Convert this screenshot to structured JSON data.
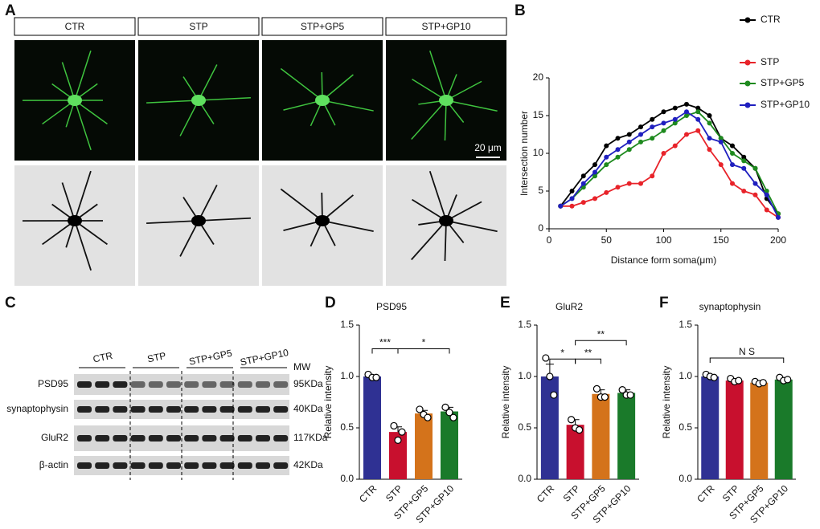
{
  "panels": {
    "letters": [
      "A",
      "B",
      "C",
      "D",
      "E",
      "F"
    ]
  },
  "images": {
    "labels": [
      "CTR",
      "STP",
      "STP+GP5",
      "STP+GP10"
    ],
    "scale_bar": "20 μm"
  },
  "blot": {
    "groups": [
      "CTR",
      "STP",
      "STP+GP5",
      "STP+GP10"
    ],
    "mw_header": "MW",
    "rows": [
      {
        "protein": "PSD95",
        "mw": "95KDa"
      },
      {
        "protein": "synaptophysin",
        "mw": "40KDa"
      },
      {
        "protein": "GluR2",
        "mw": "117KDa"
      },
      {
        "protein": "β-actin",
        "mw": "42KDa"
      }
    ]
  },
  "chart_data": [
    {
      "type": "line",
      "xlabel": "Distance form soma(μm)",
      "ylabel": "Intersection number",
      "x": [
        10,
        20,
        30,
        40,
        50,
        60,
        70,
        80,
        90,
        100,
        110,
        120,
        130,
        140,
        150,
        160,
        170,
        180,
        190,
        200
      ],
      "xlim": [
        0,
        200
      ],
      "xticks": [
        0,
        50,
        100,
        150,
        200
      ],
      "ylim": [
        0,
        20
      ],
      "yticks": [
        0,
        5,
        10,
        15,
        20
      ],
      "series": [
        {
          "name": "CTR",
          "color": "#000000",
          "values": [
            3,
            5,
            7,
            8.5,
            11,
            12,
            12.5,
            13.5,
            14.5,
            15.5,
            16,
            16.5,
            16,
            15,
            12,
            11,
            9.5,
            8,
            4,
            2
          ]
        },
        {
          "name": "STP",
          "color": "#e8232a",
          "values": [
            3,
            3,
            3.5,
            4,
            4.8,
            5.5,
            6,
            6,
            7,
            10,
            11,
            12.5,
            13,
            10.5,
            8.5,
            6,
            5,
            4.5,
            2.5,
            1.5
          ]
        },
        {
          "name": "STP+GP5",
          "color": "#1e8a1e",
          "values": [
            3,
            4,
            5.5,
            7,
            8.5,
            9.5,
            10.5,
            11.5,
            12,
            13,
            14,
            15,
            15.5,
            14,
            12,
            10,
            9,
            8,
            5,
            2
          ]
        },
        {
          "name": "STP+GP10",
          "color": "#1f1fbf",
          "values": [
            3,
            4,
            6,
            7.5,
            9.5,
            10.5,
            11.5,
            12.5,
            13.5,
            14,
            14.5,
            15.5,
            14.5,
            12,
            11.5,
            8.5,
            8,
            6,
            4.5,
            1.5
          ]
        }
      ]
    },
    {
      "type": "bar",
      "title": "PSD95",
      "ylabel": "Relative intensity",
      "categories": [
        "CTR",
        "STP",
        "STP+GP5",
        "STP+GP10"
      ],
      "colors": [
        "#2f3193",
        "#c8102e",
        "#d4731b",
        "#1a7a2a"
      ],
      "values": [
        1.0,
        0.46,
        0.64,
        0.66
      ],
      "errors": [
        0.01,
        0.05,
        0.03,
        0.04
      ],
      "points": [
        [
          1.02,
          0.99,
          0.99
        ],
        [
          0.52,
          0.38,
          0.46
        ],
        [
          0.68,
          0.63,
          0.6
        ],
        [
          0.7,
          0.65,
          0.6
        ]
      ],
      "ylim": [
        0,
        1.5
      ],
      "yticks": [
        {
          "value": 0,
          "label": "0.0"
        },
        0.5,
        {
          "value": 1,
          "label": "1.0"
        },
        1.5
      ],
      "annotations": [
        {
          "label": "***",
          "from": "CTR",
          "to": "STP"
        },
        {
          "label": "*",
          "from": "STP",
          "to": "STP+GP10"
        }
      ]
    },
    {
      "type": "bar",
      "title": "GluR2",
      "ylabel": "Relative intensity",
      "categories": [
        "CTR",
        "STP",
        "STP+GP5",
        "STP+GP10"
      ],
      "colors": [
        "#2f3193",
        "#c8102e",
        "#d4731b",
        "#1a7a2a"
      ],
      "values": [
        1.0,
        0.53,
        0.83,
        0.84
      ],
      "errors": [
        0.12,
        0.05,
        0.04,
        0.03
      ],
      "points": [
        [
          1.18,
          1.0,
          0.82
        ],
        [
          0.58,
          0.5,
          0.48
        ],
        [
          0.88,
          0.8,
          0.8
        ],
        [
          0.87,
          0.82,
          0.82
        ]
      ],
      "ylim": [
        0,
        1.5
      ],
      "yticks": [
        {
          "value": 0,
          "label": "0.0"
        },
        0.5,
        {
          "value": 1,
          "label": "1.0"
        },
        1.5
      ],
      "annotations": [
        {
          "label": "*",
          "from": "CTR",
          "to": "STP"
        },
        {
          "label": "**",
          "from": "STP",
          "to": "STP+GP5"
        },
        {
          "label": "**",
          "from": "STP",
          "to": "STP+GP10"
        }
      ]
    },
    {
      "type": "bar",
      "title": "synaptophysin",
      "ylabel": "Relative intensity",
      "categories": [
        "CTR",
        "STP",
        "STP+GP5",
        "STP+GP10"
      ],
      "colors": [
        "#2f3193",
        "#c8102e",
        "#d4731b",
        "#1a7a2a"
      ],
      "values": [
        1.0,
        0.96,
        0.94,
        0.97
      ],
      "errors": [
        0.01,
        0.02,
        0.01,
        0.01
      ],
      "points": [
        [
          1.02,
          1.0,
          0.99
        ],
        [
          0.98,
          0.95,
          0.96
        ],
        [
          0.95,
          0.93,
          0.94
        ],
        [
          0.99,
          0.96,
          0.97
        ]
      ],
      "ylim": [
        0,
        1.5
      ],
      "yticks": [
        {
          "value": 0,
          "label": "0.0"
        },
        0.5,
        {
          "value": 1,
          "label": "1.0"
        },
        1.5
      ],
      "annotations": [
        {
          "label": "N S",
          "from": "CTR",
          "to": "STP+GP10"
        }
      ]
    }
  ]
}
